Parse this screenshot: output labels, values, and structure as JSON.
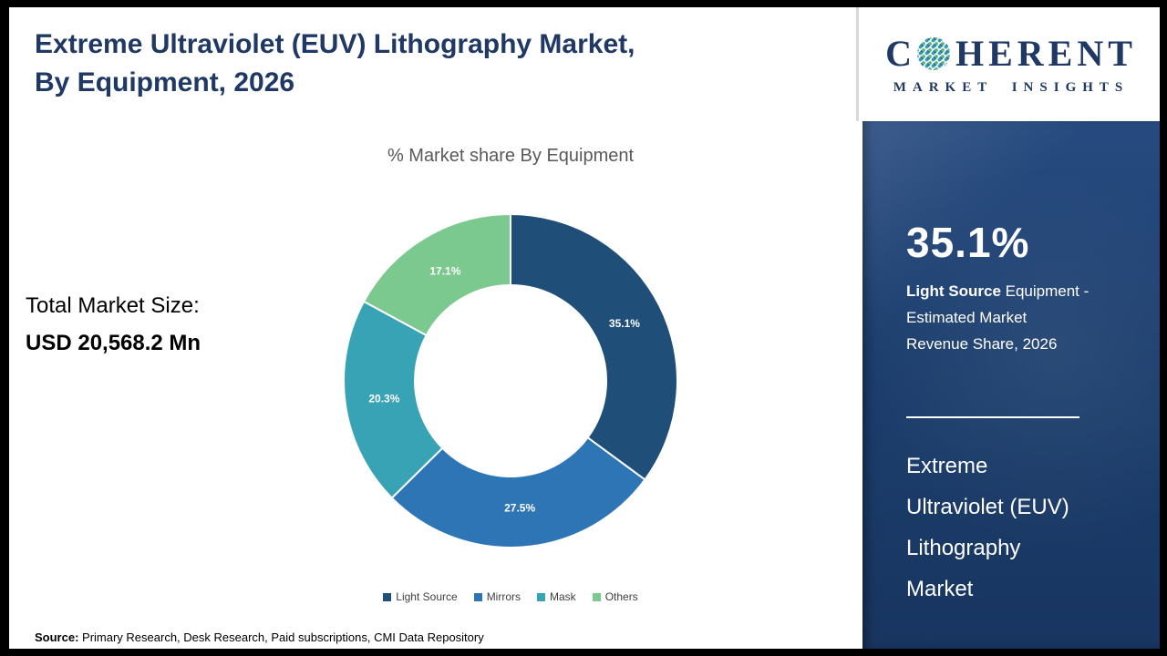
{
  "header": {
    "title_line1": "Extreme Ultraviolet (EUV) Lithography Market,",
    "title_line2": "By Equipment, 2026"
  },
  "logo": {
    "brand_prefix": "C",
    "brand_suffix": "HERENT",
    "tagline": "MARKET INSIGHTS"
  },
  "left_panel": {
    "market_size_label": "Total Market Size:",
    "market_size_value": "USD 20,568.2 Mn"
  },
  "chart_data": {
    "type": "pie",
    "subtype": "donut",
    "title": "% Market share By Equipment",
    "categories": [
      "Light Source",
      "Mirrors",
      "Mask",
      "Others"
    ],
    "values": [
      35.1,
      27.5,
      20.3,
      17.1
    ],
    "slice_labels": [
      "35.1%",
      "27.5%",
      "20.3%",
      "17.1%"
    ],
    "colors": [
      "#1f4e79",
      "#2e75b6",
      "#38a3b5",
      "#7cc98f"
    ],
    "start_angle": 0,
    "direction": "clockwise",
    "legend_position": "bottom"
  },
  "source_line": {
    "label": "Source:",
    "text": " Primary Research, Desk Research, Paid subscriptions, CMI Data Repository"
  },
  "side_panel": {
    "stat_value": "35.1%",
    "stat_line1_bold": "Light Source",
    "stat_line1_rest": " Equipment -",
    "stat_line2": "Estimated Market",
    "stat_line3": "Revenue Share, 2026",
    "title_lines": [
      "Extreme",
      "Ultraviolet (EUV)",
      "Lithography",
      "Market"
    ]
  }
}
